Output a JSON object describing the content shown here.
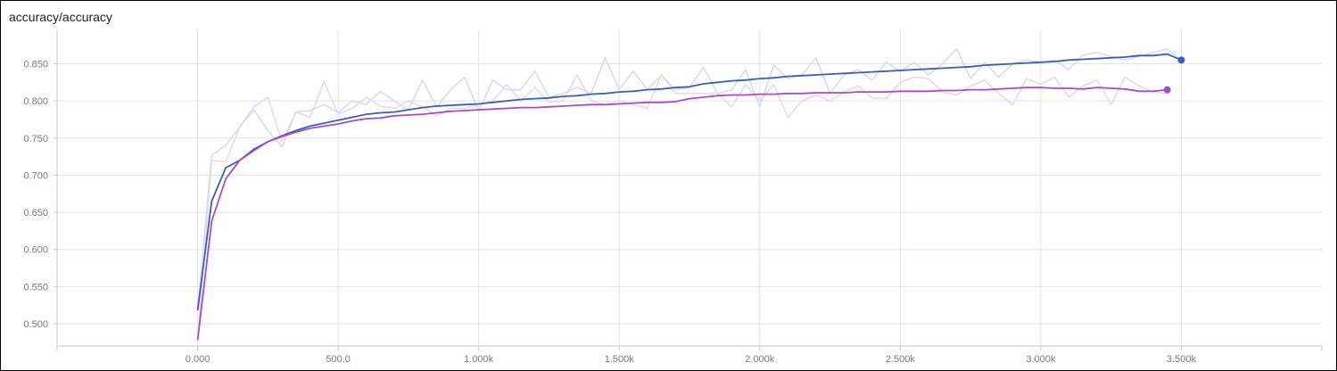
{
  "title": "accuracy/accuracy",
  "chart_data": {
    "type": "line",
    "title": "accuracy/accuracy",
    "xlabel": "",
    "ylabel": "",
    "xlim": [
      -500,
      4000
    ],
    "ylim": [
      0.47,
      0.895
    ],
    "grid": true,
    "x_ticks": [
      0,
      500,
      1000,
      1500,
      2000,
      2500,
      3000,
      3500
    ],
    "x_tick_labels": [
      "0.000",
      "500.0",
      "1.000k",
      "1.500k",
      "2.000k",
      "2.500k",
      "3.000k",
      "3.500k"
    ],
    "y_ticks": [
      0.5,
      0.55,
      0.6,
      0.65,
      0.7,
      0.75,
      0.8,
      0.85
    ],
    "y_tick_labels": [
      "0.500",
      "0.550",
      "0.600",
      "0.650",
      "0.700",
      "0.750",
      "0.800",
      "0.850"
    ],
    "series": [
      {
        "color": "#3a5fb8",
        "raw_color": "#d3dced",
        "x": [
          0,
          50,
          100,
          150,
          200,
          250,
          300,
          350,
          400,
          450,
          500,
          550,
          600,
          650,
          700,
          750,
          800,
          850,
          900,
          950,
          1000,
          1050,
          1100,
          1150,
          1200,
          1250,
          1300,
          1350,
          1400,
          1450,
          1500,
          1550,
          1600,
          1650,
          1700,
          1750,
          1800,
          1850,
          1900,
          1950,
          2000,
          2050,
          2100,
          2150,
          2200,
          2250,
          2300,
          2350,
          2400,
          2450,
          2500,
          2550,
          2600,
          2650,
          2700,
          2750,
          2800,
          2850,
          2900,
          2950,
          3000,
          3050,
          3100,
          3150,
          3200,
          3250,
          3300,
          3350,
          3400,
          3450,
          3500
        ],
        "raw": [
          0.52,
          0.727,
          0.74,
          0.765,
          0.788,
          0.76,
          0.738,
          0.785,
          0.787,
          0.795,
          0.784,
          0.8,
          0.795,
          0.813,
          0.8,
          0.788,
          0.828,
          0.792,
          0.815,
          0.832,
          0.786,
          0.828,
          0.815,
          0.815,
          0.84,
          0.805,
          0.81,
          0.818,
          0.81,
          0.858,
          0.815,
          0.84,
          0.815,
          0.835,
          0.815,
          0.818,
          0.845,
          0.81,
          0.815,
          0.842,
          0.792,
          0.848,
          0.83,
          0.835,
          0.858,
          0.81,
          0.835,
          0.842,
          0.828,
          0.852,
          0.84,
          0.852,
          0.835,
          0.85,
          0.87,
          0.83,
          0.852,
          0.832,
          0.85,
          0.855,
          0.852,
          0.855,
          0.842,
          0.862,
          0.865,
          0.86,
          0.855,
          0.86,
          0.865,
          0.87,
          0.855
        ],
        "smoothed": [
          0.518,
          0.665,
          0.71,
          0.72,
          0.735,
          0.745,
          0.753,
          0.76,
          0.766,
          0.77,
          0.774,
          0.778,
          0.782,
          0.784,
          0.785,
          0.788,
          0.791,
          0.793,
          0.794,
          0.795,
          0.796,
          0.798,
          0.8,
          0.802,
          0.803,
          0.804,
          0.806,
          0.807,
          0.809,
          0.81,
          0.812,
          0.813,
          0.815,
          0.816,
          0.818,
          0.819,
          0.823,
          0.825,
          0.827,
          0.828,
          0.83,
          0.831,
          0.833,
          0.834,
          0.835,
          0.836,
          0.837,
          0.838,
          0.839,
          0.84,
          0.841,
          0.842,
          0.843,
          0.844,
          0.845,
          0.846,
          0.848,
          0.849,
          0.85,
          0.851,
          0.852,
          0.853,
          0.855,
          0.856,
          0.857,
          0.858,
          0.859,
          0.861,
          0.861,
          0.863,
          0.855
        ]
      },
      {
        "color": "#a54dc1",
        "raw_color": "#ecd3f0",
        "x": [
          0,
          50,
          100,
          150,
          200,
          250,
          300,
          350,
          400,
          450,
          500,
          550,
          600,
          650,
          700,
          750,
          800,
          850,
          900,
          950,
          1000,
          1050,
          1100,
          1150,
          1200,
          1250,
          1300,
          1350,
          1400,
          1450,
          1500,
          1550,
          1600,
          1650,
          1700,
          1750,
          1800,
          1850,
          1900,
          1950,
          2000,
          2050,
          2100,
          2150,
          2200,
          2250,
          2300,
          2350,
          2400,
          2450,
          2500,
          2550,
          2600,
          2650,
          2700,
          2750,
          2800,
          2850,
          2900,
          2950,
          3000,
          3050,
          3100,
          3150,
          3200,
          3250,
          3300,
          3350,
          3400,
          3450
        ],
        "raw": [
          0.478,
          0.72,
          0.718,
          0.765,
          0.792,
          0.805,
          0.745,
          0.785,
          0.778,
          0.826,
          0.782,
          0.79,
          0.805,
          0.793,
          0.79,
          0.8,
          0.792,
          0.78,
          0.79,
          0.79,
          0.795,
          0.8,
          0.822,
          0.8,
          0.818,
          0.798,
          0.8,
          0.835,
          0.8,
          0.795,
          0.8,
          0.795,
          0.79,
          0.835,
          0.81,
          0.81,
          0.81,
          0.81,
          0.792,
          0.822,
          0.8,
          0.822,
          0.778,
          0.8,
          0.808,
          0.8,
          0.812,
          0.82,
          0.804,
          0.803,
          0.825,
          0.832,
          0.83,
          0.812,
          0.808,
          0.82,
          0.828,
          0.81,
          0.795,
          0.83,
          0.822,
          0.832,
          0.805,
          0.82,
          0.828,
          0.795,
          0.832,
          0.82,
          0.812,
          0.81
        ],
        "smoothed": [
          0.478,
          0.638,
          0.695,
          0.72,
          0.733,
          0.745,
          0.752,
          0.758,
          0.763,
          0.766,
          0.769,
          0.773,
          0.776,
          0.777,
          0.78,
          0.781,
          0.782,
          0.784,
          0.786,
          0.787,
          0.788,
          0.789,
          0.79,
          0.791,
          0.791,
          0.792,
          0.793,
          0.794,
          0.795,
          0.795,
          0.796,
          0.797,
          0.798,
          0.798,
          0.799,
          0.803,
          0.805,
          0.807,
          0.808,
          0.808,
          0.809,
          0.809,
          0.81,
          0.81,
          0.811,
          0.811,
          0.811,
          0.812,
          0.812,
          0.812,
          0.813,
          0.813,
          0.813,
          0.814,
          0.814,
          0.815,
          0.815,
          0.816,
          0.817,
          0.818,
          0.818,
          0.817,
          0.817,
          0.816,
          0.818,
          0.817,
          0.816,
          0.813,
          0.813,
          0.815
        ]
      }
    ]
  }
}
